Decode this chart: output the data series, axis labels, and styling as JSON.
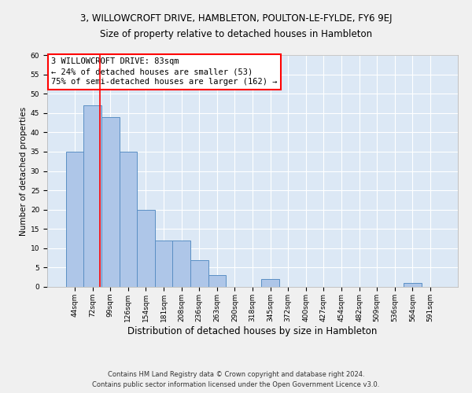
{
  "title1": "3, WILLOWCROFT DRIVE, HAMBLETON, POULTON-LE-FYLDE, FY6 9EJ",
  "title2": "Size of property relative to detached houses in Hambleton",
  "xlabel": "Distribution of detached houses by size in Hambleton",
  "ylabel": "Number of detached properties",
  "categories": [
    "44sqm",
    "72sqm",
    "99sqm",
    "126sqm",
    "154sqm",
    "181sqm",
    "208sqm",
    "236sqm",
    "263sqm",
    "290sqm",
    "318sqm",
    "345sqm",
    "372sqm",
    "400sqm",
    "427sqm",
    "454sqm",
    "482sqm",
    "509sqm",
    "536sqm",
    "564sqm",
    "591sqm"
  ],
  "values": [
    35,
    47,
    44,
    35,
    20,
    12,
    12,
    7,
    3,
    0,
    0,
    2,
    0,
    0,
    0,
    0,
    0,
    0,
    0,
    1,
    0
  ],
  "bar_color": "#aec6e8",
  "bar_edge_color": "#5a8fc4",
  "background_color": "#dce8f5",
  "grid_color": "#ffffff",
  "fig_background": "#f0f0f0",
  "ylim": [
    0,
    60
  ],
  "yticks": [
    0,
    5,
    10,
    15,
    20,
    25,
    30,
    35,
    40,
    45,
    50,
    55,
    60
  ],
  "annotation_text": "3 WILLOWCROFT DRIVE: 83sqm\n← 24% of detached houses are smaller (53)\n75% of semi-detached houses are larger (162) →",
  "footer1": "Contains HM Land Registry data © Crown copyright and database right 2024.",
  "footer2": "Contains public sector information licensed under the Open Government Licence v3.0.",
  "title1_fontsize": 8.5,
  "title2_fontsize": 8.5,
  "xlabel_fontsize": 8.5,
  "ylabel_fontsize": 7.5,
  "tick_fontsize": 6.5,
  "annotation_fontsize": 7.5,
  "footer_fontsize": 6.0
}
